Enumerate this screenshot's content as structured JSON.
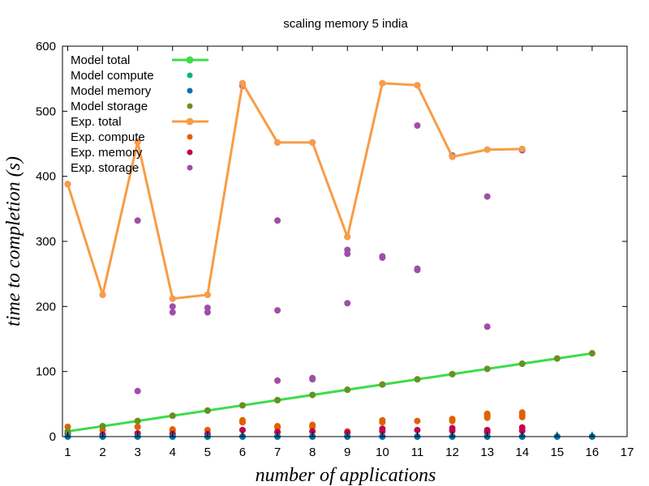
{
  "chart_data": {
    "type": "scatter",
    "title": "scaling memory 5 india",
    "xlabel": "number of applications",
    "ylabel": "time to completion (s)",
    "xlim": [
      0.85,
      17
    ],
    "ylim": [
      0,
      600
    ],
    "xticks": [
      "1",
      "2",
      "3",
      "4",
      "5",
      "6",
      "7",
      "8",
      "9",
      "10",
      "11",
      "12",
      "13",
      "14",
      "15",
      "16",
      "17"
    ],
    "yticks": [
      "0",
      "100",
      "200",
      "300",
      "400",
      "500",
      "600"
    ],
    "grid": false,
    "legend_position": "top-left",
    "series": [
      {
        "name": "Model total",
        "color": "#3ddc4a",
        "style": "line+points",
        "x": [
          1,
          2,
          3,
          4,
          5,
          6,
          7,
          8,
          9,
          10,
          11,
          12,
          13,
          14,
          15,
          16
        ],
        "y": [
          8,
          16,
          24,
          32,
          40,
          48,
          56,
          64,
          72,
          80,
          88,
          96,
          104,
          112,
          120,
          128
        ]
      },
      {
        "name": "Model compute",
        "color": "#00b87a",
        "style": "points",
        "x": [
          1,
          2,
          3,
          4,
          5,
          6,
          7,
          8,
          9,
          10,
          11,
          12,
          13,
          14,
          15,
          16
        ],
        "y": [
          0,
          0,
          0,
          0,
          0,
          0,
          0,
          0,
          0,
          0,
          0,
          0,
          0,
          0,
          0,
          0
        ]
      },
      {
        "name": "Model memory",
        "color": "#0072b2",
        "style": "points",
        "x": [
          1,
          2,
          3,
          4,
          5,
          6,
          7,
          8,
          9,
          10,
          11,
          12,
          13,
          14,
          15,
          16
        ],
        "y": [
          0,
          0,
          0,
          0,
          0,
          0,
          0,
          0,
          0,
          0,
          0,
          0,
          0,
          0,
          0,
          0
        ]
      },
      {
        "name": "Model storage",
        "color": "#6b8e23",
        "style": "points",
        "x": [
          1,
          2,
          3,
          4,
          5,
          6,
          7,
          8,
          9,
          10,
          11,
          12,
          13,
          14,
          15,
          16
        ],
        "y": [
          8,
          16,
          24,
          32,
          40,
          48,
          56,
          64,
          72,
          80,
          88,
          96,
          104,
          112,
          120,
          128
        ]
      },
      {
        "name": "Exp.  total",
        "color": "#f89c46",
        "style": "line+points",
        "x": [
          1,
          2,
          3,
          4,
          5,
          6,
          7,
          8,
          9,
          10,
          11,
          12,
          13,
          14
        ],
        "y": [
          388,
          218,
          453,
          212,
          218,
          543,
          452,
          452,
          307,
          543,
          540,
          430,
          441,
          442
        ]
      },
      {
        "name": "Exp.  compute",
        "color": "#e06000",
        "style": "points",
        "x": [
          1,
          2,
          3,
          4,
          4,
          5,
          6,
          6,
          7,
          7,
          8,
          8,
          9,
          10,
          10,
          11,
          12,
          12,
          13,
          13,
          13,
          14,
          14,
          14
        ],
        "y": [
          15,
          10,
          15,
          11,
          9,
          10,
          25,
          22,
          16,
          14,
          18,
          15,
          8,
          25,
          22,
          24,
          27,
          24,
          35,
          32,
          29,
          37,
          33,
          30
        ]
      },
      {
        "name": "Exp.  memory",
        "color": "#c3004e",
        "style": "points",
        "x": [
          1,
          2,
          3,
          4,
          5,
          6,
          7,
          8,
          9,
          10,
          10,
          11,
          12,
          12,
          13,
          13,
          14,
          14
        ],
        "y": [
          5,
          3,
          5,
          4,
          4,
          10,
          7,
          8,
          6,
          12,
          8,
          10,
          13,
          9,
          10,
          7,
          14,
          9
        ]
      },
      {
        "name": "Exp.  storage",
        "color": "#9e4fa8",
        "style": "points",
        "x": [
          1,
          2,
          3,
          3,
          3,
          4,
          4,
          4,
          5,
          5,
          5,
          6,
          6,
          7,
          7,
          7,
          7,
          8,
          8,
          8,
          9,
          9,
          9,
          9,
          10,
          10,
          10,
          11,
          11,
          11,
          11,
          12,
          12,
          13,
          13,
          13,
          14,
          14
        ],
        "y": [
          388,
          218,
          453,
          332,
          70,
          212,
          200,
          191,
          218,
          198,
          191,
          543,
          539,
          452,
          332,
          194,
          86,
          452,
          90,
          88,
          307,
          287,
          281,
          205,
          543,
          277,
          275,
          540,
          478,
          258,
          256,
          430,
          432,
          441,
          369,
          169,
          442,
          440
        ]
      }
    ]
  }
}
